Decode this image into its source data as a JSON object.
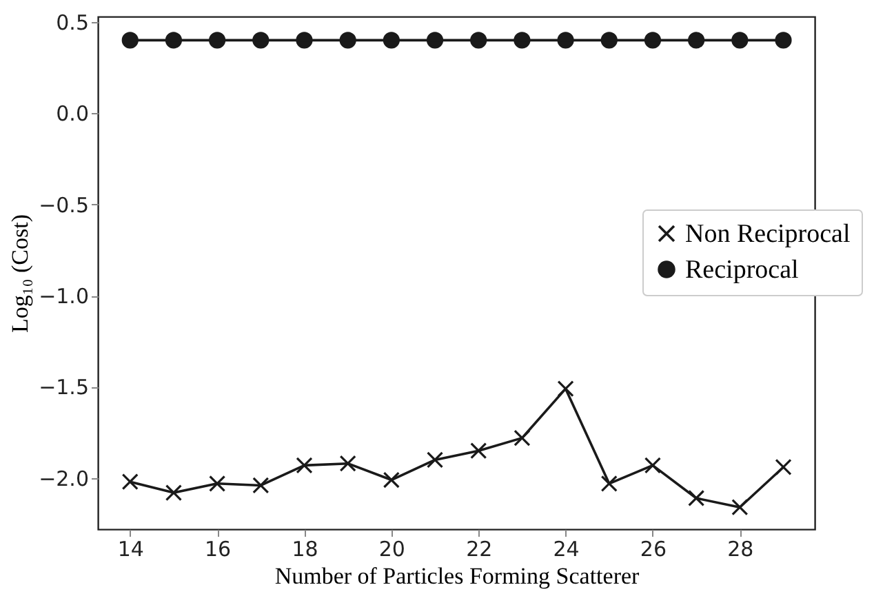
{
  "chart_data": {
    "type": "line",
    "xlabel": "Number of Particles Forming Scatterer",
    "ylabel": "Log₁₀ (Cost)",
    "x": [
      14,
      15,
      16,
      17,
      18,
      19,
      20,
      21,
      22,
      23,
      24,
      25,
      26,
      27,
      28,
      29
    ],
    "series": [
      {
        "name": "Non Reciprocal",
        "color": "#1a1a1a",
        "marker": "cross",
        "values": [
          -2.02,
          -2.08,
          -2.03,
          -2.04,
          -1.93,
          -1.92,
          -2.01,
          -1.9,
          -1.85,
          -1.78,
          -1.51,
          -2.03,
          -1.93,
          -2.11,
          -2.16,
          -1.94
        ]
      },
      {
        "name": "Reciprocal",
        "color": "#1a1a1a",
        "marker": "circle",
        "values": [
          0.4,
          0.4,
          0.4,
          0.4,
          0.4,
          0.4,
          0.4,
          0.4,
          0.4,
          0.4,
          0.4,
          0.4,
          0.4,
          0.4,
          0.4,
          0.4
        ]
      }
    ],
    "xlim": [
      13.26,
      29.72
    ],
    "xticks": [
      14,
      16,
      18,
      20,
      22,
      24,
      26,
      28
    ],
    "ylim": [
      -2.28,
      0.53
    ],
    "yticks": [
      {
        "value": -2,
        "label": "−2.0"
      },
      {
        "value": -1.5,
        "label": "−1.5"
      },
      {
        "value": -1,
        "label": "−1.0"
      },
      {
        "value": -0.5,
        "label": "−0.5"
      },
      {
        "value": 0,
        "label": "0.0"
      },
      {
        "value": 0.5,
        "label": "0.5"
      }
    ],
    "grid": false,
    "legend": "right",
    "line_style": "solid"
  }
}
